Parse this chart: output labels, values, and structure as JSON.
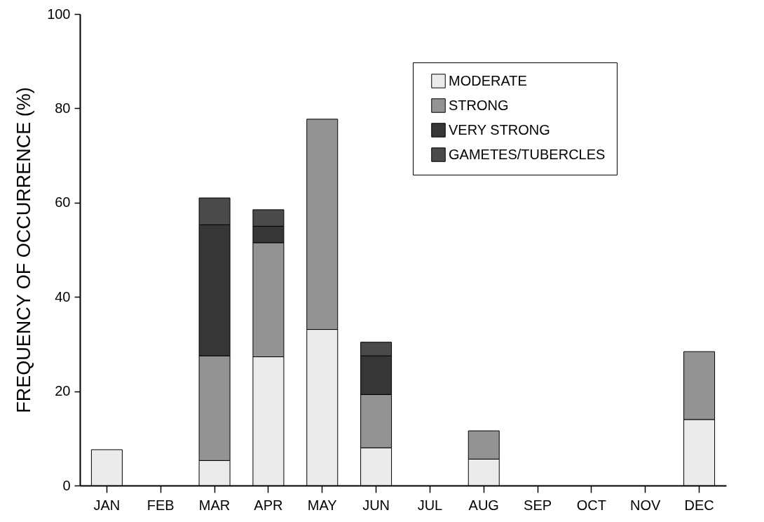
{
  "chart_data": {
    "type": "bar",
    "stacked": true,
    "ylabel": "FREQUENCY OF OCCURRENCE (%)",
    "categories": [
      "JAN",
      "FEB",
      "MAR",
      "APR",
      "MAY",
      "JUN",
      "JUL",
      "AUG",
      "SEP",
      "OCT",
      "NOV",
      "DEC"
    ],
    "series": [
      {
        "name": "MODERATE",
        "color": "#ebebeb",
        "values": [
          7.6,
          null,
          5.3,
          27.3,
          33.1,
          8.0,
          null,
          5.6,
          null,
          null,
          null,
          14.0
        ]
      },
      {
        "name": "STRONG",
        "color": "#939393",
        "values": [
          null,
          null,
          22.2,
          24.2,
          44.6,
          11.3,
          null,
          6.0,
          null,
          null,
          null,
          14.4
        ]
      },
      {
        "name": "VERY STRONG",
        "color": "#363636",
        "values": [
          null,
          null,
          27.8,
          3.5,
          null,
          8.2,
          null,
          null,
          null,
          null,
          null,
          null
        ]
      },
      {
        "name": "GAMETES/TUBERCLES",
        "color": "#4a4a4a",
        "values": [
          null,
          null,
          5.7,
          3.5,
          null,
          2.9,
          null,
          null,
          null,
          null,
          null,
          null
        ]
      }
    ],
    "ylim": [
      0,
      100
    ],
    "yticks": [
      0,
      20,
      40,
      60,
      80,
      100
    ],
    "grid": false,
    "legend": "top right"
  }
}
